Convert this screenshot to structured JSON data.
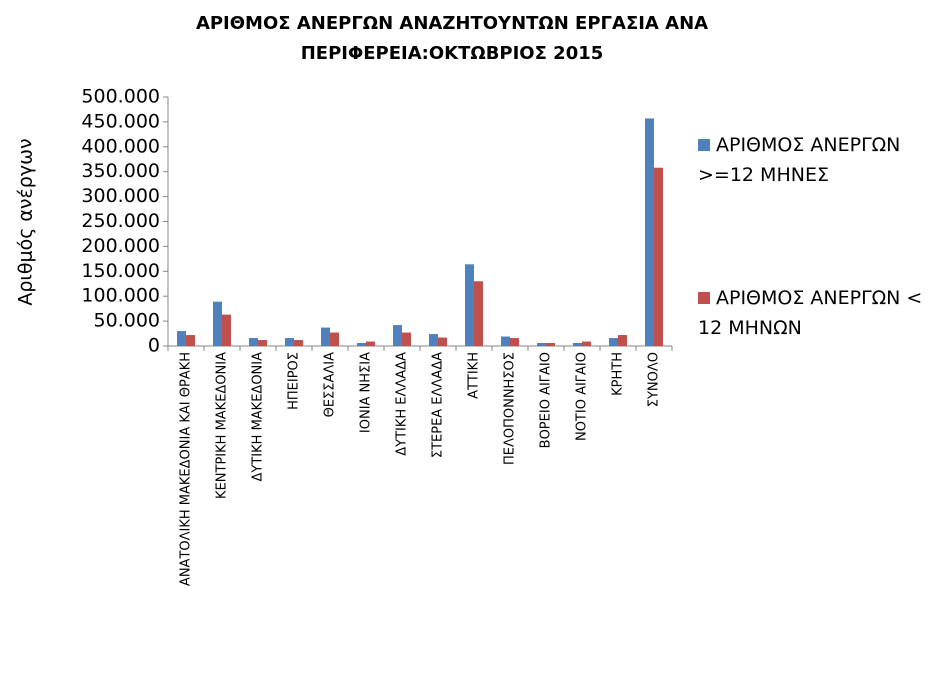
{
  "chart_data": {
    "type": "bar",
    "title": [
      "ΑΡΙΘΜΟΣ ΑΝΕΡΓΩΝ ΑΝΑΖΗΤΟΥΝΤΩΝ ΕΡΓΑΣΙΑ ΑΝΑ",
      "ΠΕΡΙΦΕΡΕΙΑ:ΟΚΤΩΒΡΙΟΣ 2015"
    ],
    "y_label": "Αριθμός ανέργων",
    "categories": [
      "ΑΝΑΤΟΛΙΚΗ ΜΑΚΕΔΟΝΙΑ ΚΑΙ ΘΡΑΚΗ",
      "ΚΕΝΤΡΙΚΗ ΜΑΚΕΔΟΝΙΑ",
      "ΔΥΤΙΚΗ ΜΑΚΕΔΟΝΙΑ",
      "ΗΠΕΙΡΟΣ",
      "ΘΕΣΣΑΛΙΑ",
      "ΙΟΝΙΑ ΝΗΣΙΑ",
      "ΔΥΤΙΚΗ ΕΛΛΑΔΑ",
      "ΣΤΕΡΕΑ ΕΛΛΑΔΑ",
      "ΑΤΤΙΚΗ",
      "ΠΕΛΟΠΟΝΝΗΣΟΣ",
      "ΒΟΡΕΙΟ ΑΙΓΑΙΟ",
      "ΝΟΤΙΟ ΑΙΓΑΙΟ",
      "ΚΡΗΤΗ",
      "ΣΥΝΟΛΟ"
    ],
    "series": [
      {
        "name": "ΑΡΙΘΜΟΣ ΑΝΕΡΓΩΝ >=12 ΜΗΝΕΣ",
        "color": "#4f81bd",
        "values": [
          30000,
          89000,
          16000,
          16000,
          37000,
          6000,
          42000,
          24000,
          164000,
          19000,
          6000,
          6000,
          16000,
          457000
        ]
      },
      {
        "name": "ΑΡΙΘΜΟΣ ΑΝΕΡΓΩΝ < 12 ΜΗΝΩΝ",
        "color": "#c0504d",
        "values": [
          22000,
          63000,
          12000,
          12000,
          27000,
          9000,
          27000,
          17000,
          130000,
          16000,
          6000,
          9000,
          22000,
          358000
        ]
      }
    ],
    "ylim": [
      0,
      500000
    ],
    "yticks": [
      0,
      {
        "value": 50000,
        "label": "50.000"
      },
      {
        "value": 100000,
        "label": "100.000"
      },
      {
        "value": 150000,
        "label": "150.000"
      },
      {
        "value": 200000,
        "label": "200.000"
      },
      {
        "value": 250000,
        "label": "250.000"
      },
      {
        "value": 300000,
        "label": "300.000"
      },
      {
        "value": 350000,
        "label": "350.000"
      },
      {
        "value": 400000,
        "label": "400.000"
      },
      {
        "value": 450000,
        "label": "450.000"
      },
      {
        "value": 500000,
        "label": "500.000"
      }
    ],
    "grid": false,
    "legend": "right"
  }
}
